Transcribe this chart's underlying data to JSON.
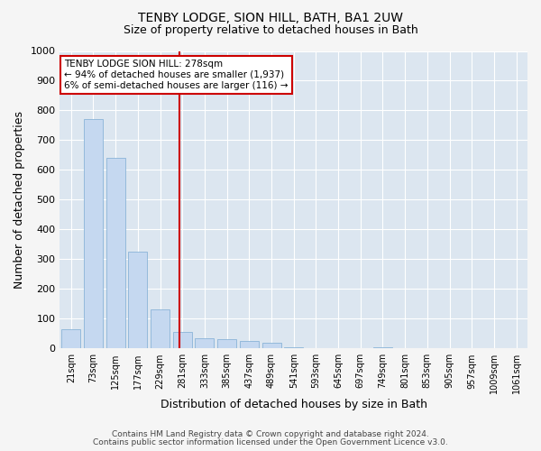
{
  "title1": "TENBY LODGE, SION HILL, BATH, BA1 2UW",
  "title2": "Size of property relative to detached houses in Bath",
  "xlabel": "Distribution of detached houses by size in Bath",
  "ylabel": "Number of detached properties",
  "bin_labels": [
    "21sqm",
    "73sqm",
    "125sqm",
    "177sqm",
    "229sqm",
    "281sqm",
    "333sqm",
    "385sqm",
    "437sqm",
    "489sqm",
    "541sqm",
    "593sqm",
    "645sqm",
    "697sqm",
    "749sqm",
    "801sqm",
    "853sqm",
    "905sqm",
    "957sqm",
    "1009sqm",
    "1061sqm"
  ],
  "bar_heights": [
    65,
    770,
    640,
    325,
    130,
    55,
    35,
    30,
    25,
    20,
    5,
    0,
    0,
    0,
    5,
    0,
    0,
    0,
    0,
    0,
    0
  ],
  "bar_color": "#c5d8f0",
  "bar_edge_color": "#8ab4d8",
  "vline_x": 4.88,
  "annotation_title": "TENBY LODGE SION HILL: 278sqm",
  "annotation_line1": "← 94% of detached houses are smaller (1,937)",
  "annotation_line2": "6% of semi-detached houses are larger (116) →",
  "annotation_box_color": "#ffffff",
  "annotation_box_edge": "#cc0000",
  "vline_color": "#cc0000",
  "footer1": "Contains HM Land Registry data © Crown copyright and database right 2024.",
  "footer2": "Contains public sector information licensed under the Open Government Licence v3.0.",
  "ylim": [
    0,
    1000
  ],
  "yticks": [
    0,
    100,
    200,
    300,
    400,
    500,
    600,
    700,
    800,
    900,
    1000
  ],
  "background_color": "#dce6f0",
  "fig_background": "#f5f5f5",
  "grid_color": "#ffffff"
}
